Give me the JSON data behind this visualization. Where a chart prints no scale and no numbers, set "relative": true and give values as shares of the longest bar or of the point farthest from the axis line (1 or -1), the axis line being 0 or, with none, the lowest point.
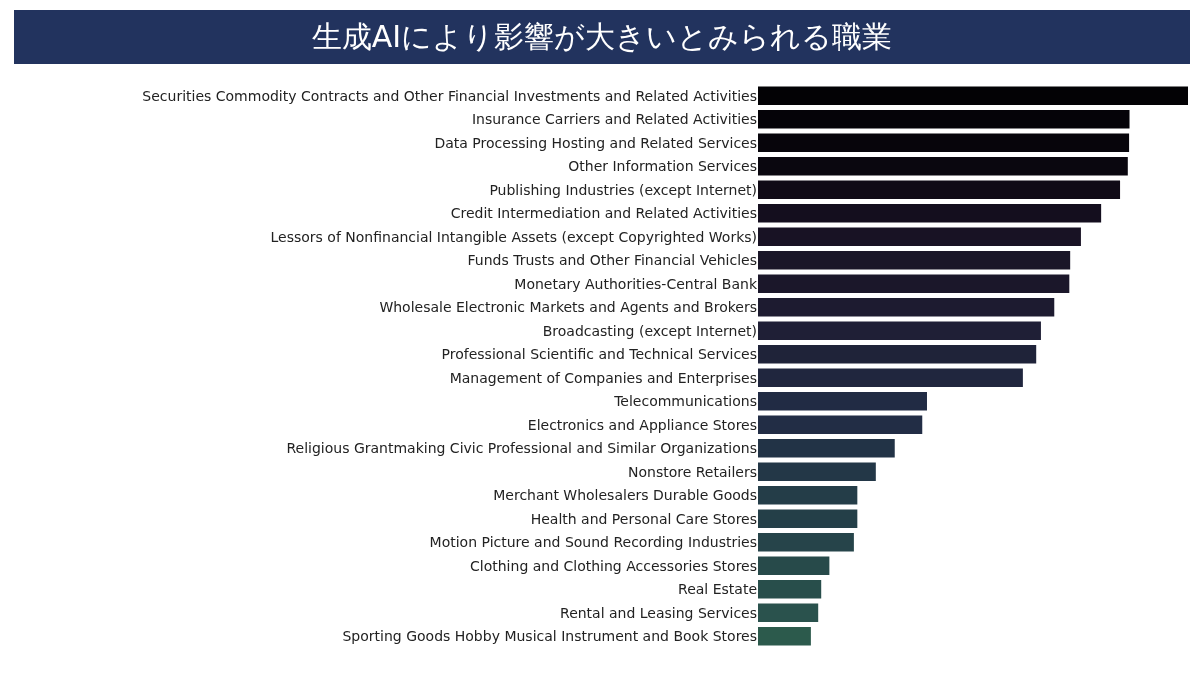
{
  "chart_data": {
    "type": "bar",
    "orientation": "horizontal",
    "relative": true,
    "title": "生成AIにより影響が大きいとみられる職業",
    "categories": [
      "Securities Commodity Contracts and Other Financial Investments and Related Activities",
      "Insurance Carriers and Related Activities",
      "Data Processing Hosting and Related Services",
      "Other Information Services",
      "Publishing Industries (except Internet)",
      "Credit Intermediation and Related Activities",
      "Lessors of Nonfinancial Intangible Assets (except Copyrighted Works)",
      "Funds Trusts and Other Financial Vehicles",
      "Monetary Authorities-Central Bank",
      "Wholesale Electronic Markets and Agents and Brokers",
      "Broadcasting (except Internet)",
      "Professional Scientific and Technical Services",
      "Management of Companies and Enterprises",
      "Telecommunications",
      "Electronics and Appliance Stores",
      "Religious Grantmaking Civic Professional and Similar Organizations",
      "Nonstore Retailers",
      "Merchant Wholesalers Durable Goods",
      "Health and Personal Care Stores",
      "Motion Picture and Sound Recording Industries",
      "Clothing and Clothing Accessories Stores",
      "Real Estate",
      "Rental and Leasing Services",
      "Sporting Goods Hobby Musical Instrument and Book Stores"
    ],
    "values": [
      1.0,
      0.864,
      0.863,
      0.86,
      0.842,
      0.798,
      0.751,
      0.726,
      0.724,
      0.689,
      0.658,
      0.647,
      0.616,
      0.393,
      0.382,
      0.318,
      0.274,
      0.231,
      0.231,
      0.223,
      0.166,
      0.147,
      0.14,
      0.123
    ],
    "colors": [
      "#030205",
      "#050308",
      "#07050b",
      "#0a070f",
      "#100a16",
      "#140e1e",
      "#181224",
      "#1a1628",
      "#1b172a",
      "#1d1b30",
      "#1f1f36",
      "#1f2339",
      "#20263e",
      "#212b44",
      "#222d45",
      "#223346",
      "#233747",
      "#243d48",
      "#243f48",
      "#26444a",
      "#274a4a",
      "#284e4b",
      "#2a524d",
      "#2c5a4c"
    ]
  }
}
